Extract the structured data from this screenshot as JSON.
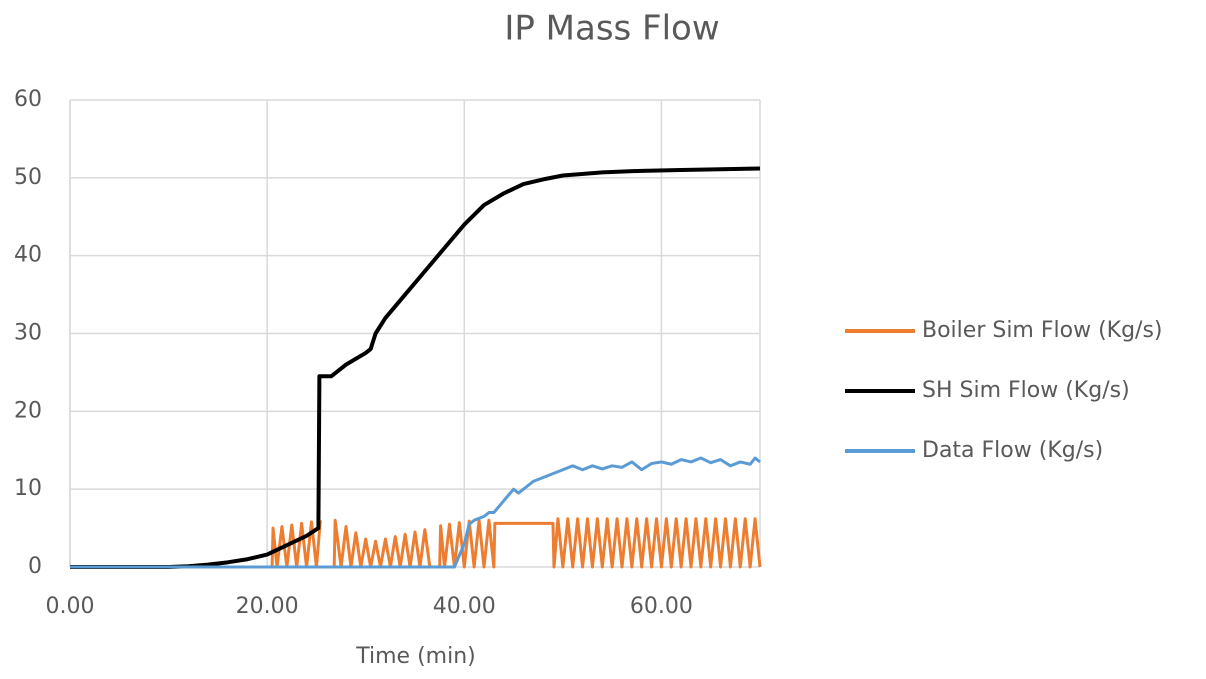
{
  "chart_data": {
    "type": "line",
    "title": "IP Mass Flow",
    "x_label": "Time (min)",
    "xlim": [
      0,
      70
    ],
    "xticks": [
      {
        "value": 0,
        "label": "0.00"
      },
      {
        "value": 20,
        "label": "20.00"
      },
      {
        "value": 40,
        "label": "40.00"
      },
      {
        "value": 60,
        "label": "60.00"
      }
    ],
    "ylim": [
      0,
      60
    ],
    "yticks": [
      0,
      10,
      20,
      30,
      40,
      50,
      60
    ],
    "grid": true,
    "legend": "right",
    "series": [
      {
        "name": "Boiler Sim Flow (Kg/s)",
        "color": "#ED7D31",
        "x": [
          0,
          20.5,
          20.6,
          21,
          21.5,
          22,
          22.5,
          23,
          23.5,
          24,
          24.5,
          25,
          25.4,
          26,
          26.8,
          26.9,
          27.5,
          28,
          28.5,
          29,
          29.5,
          30,
          30.5,
          31,
          31.5,
          32,
          32.5,
          33,
          33.5,
          34,
          34.5,
          35,
          35.5,
          36,
          36.5,
          37,
          37.5,
          37.6,
          38,
          38.5,
          39,
          39.5,
          40,
          40.5,
          41,
          41.5,
          42,
          42.5,
          43,
          43.1,
          49,
          49.1,
          49.5,
          50,
          50.5,
          51,
          51.5,
          52,
          52.5,
          53,
          53.5,
          54,
          54.5,
          55,
          55.5,
          56,
          56.5,
          57,
          57.5,
          58,
          58.5,
          59,
          59.5,
          60,
          60.5,
          61,
          61.5,
          62,
          62.5,
          63,
          63.5,
          64,
          64.5,
          65,
          65.5,
          66,
          66.5,
          67,
          67.5,
          68,
          68.5,
          69,
          69.5,
          70
        ],
        "values": [
          0,
          0,
          5,
          0,
          5.2,
          0,
          5.4,
          0,
          5.6,
          0,
          5.8,
          0,
          6,
          null,
          0,
          6,
          0,
          5.2,
          0,
          4.4,
          0,
          3.6,
          0,
          3.3,
          0,
          3.6,
          0,
          3.9,
          0,
          4.2,
          0,
          4.5,
          0,
          4.8,
          0,
          null,
          0,
          5.3,
          0,
          5.5,
          0,
          5.7,
          0,
          5.9,
          0,
          6,
          0,
          6,
          0,
          5.6,
          5.6,
          0,
          6.2,
          0,
          6.2,
          0,
          6.2,
          0,
          6.2,
          0,
          6.2,
          0,
          6.2,
          0,
          6.2,
          0,
          6.2,
          0,
          6.2,
          0,
          6.2,
          0,
          6.2,
          0,
          6.2,
          0,
          6.2,
          0,
          6.2,
          0,
          6.2,
          0,
          6.2,
          0,
          6.2,
          0,
          6.2,
          0,
          6.2,
          0,
          6.2,
          0,
          6.2,
          0
        ]
      },
      {
        "name": "SH Sim Flow (Kg/s)",
        "color": "#000000",
        "x": [
          0,
          10,
          12,
          14,
          16,
          18,
          20,
          22,
          24,
          25.2,
          25.3,
          26.5,
          27,
          28,
          30,
          30.5,
          31,
          32,
          34,
          36,
          38,
          40,
          42,
          44,
          46,
          48,
          50,
          54,
          58,
          62,
          70
        ],
        "values": [
          0,
          0,
          0.1,
          0.3,
          0.6,
          1,
          1.6,
          2.8,
          4,
          5,
          24.5,
          24.5,
          25,
          26,
          27.5,
          28,
          30,
          32,
          35,
          38,
          41,
          44,
          46.5,
          48,
          49.2,
          49.8,
          50.3,
          50.7,
          50.9,
          51,
          51.2
        ]
      },
      {
        "name": "Data Flow (Kg/s)",
        "color": "#5B9BD5",
        "x": [
          0,
          39,
          40,
          40.5,
          41,
          42,
          42.5,
          43,
          44,
          45,
          45.5,
          46,
          47,
          48,
          49,
          50,
          51,
          52,
          53,
          54,
          55,
          56,
          57,
          58,
          59,
          60,
          61,
          62,
          63,
          64,
          65,
          66,
          67,
          68,
          69,
          69.5,
          70
        ],
        "values": [
          0,
          0,
          3,
          5.5,
          6,
          6.5,
          7,
          7,
          8.5,
          10,
          9.5,
          10,
          11,
          11.5,
          12,
          12.5,
          13,
          12.5,
          13,
          12.6,
          13,
          12.8,
          13.5,
          12.5,
          13.3,
          13.5,
          13.2,
          13.8,
          13.5,
          14,
          13.4,
          13.8,
          13,
          13.5,
          13.2,
          14,
          13.5
        ]
      }
    ]
  }
}
